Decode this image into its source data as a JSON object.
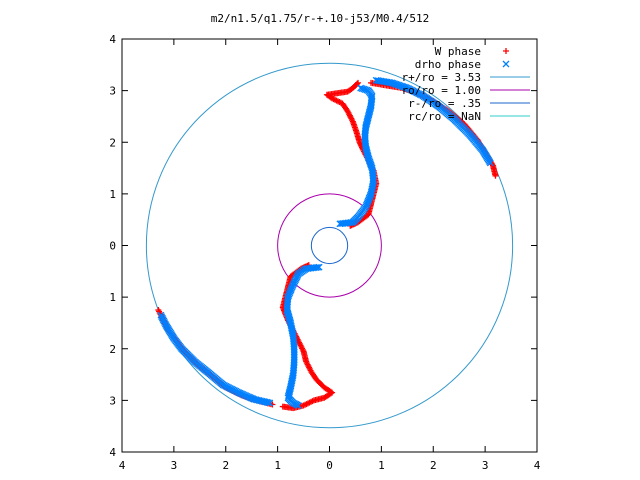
{
  "chart_data": {
    "type": "scatter",
    "title": "m2/n1.5/q1.75/r-+.10-j53/M0.4/512",
    "xlabel": "",
    "ylabel": "",
    "xlim": [
      -4,
      4
    ],
    "ylim": [
      -4,
      4
    ],
    "grid": false,
    "legend_position": "top-right",
    "x_tick_labels": [
      "4",
      "3",
      "2",
      "1",
      "0",
      "1",
      "2",
      "3",
      "4"
    ],
    "y_tick_labels": [
      "4",
      "3",
      "2",
      "1",
      "0",
      "1",
      "2",
      "3",
      "4"
    ],
    "series": [
      {
        "name": "W phase",
        "marker": "+",
        "color": "#ff0000",
        "points": [
          [
            0.55,
            3.15
          ],
          [
            0.45,
            3.05
          ],
          [
            0.35,
            2.98
          ],
          [
            0.15,
            2.95
          ],
          [
            -0.05,
            2.92
          ],
          [
            0.05,
            2.85
          ],
          [
            0.25,
            2.75
          ],
          [
            0.35,
            2.6
          ],
          [
            0.45,
            2.4
          ],
          [
            0.52,
            2.2
          ],
          [
            0.58,
            2.0
          ],
          [
            0.65,
            1.85
          ],
          [
            0.75,
            1.65
          ],
          [
            0.85,
            1.45
          ],
          [
            0.9,
            1.2
          ],
          [
            0.85,
            1.0
          ],
          [
            0.8,
            0.8
          ],
          [
            0.75,
            0.6
          ],
          [
            0.55,
            0.45
          ],
          [
            0.4,
            0.38
          ],
          [
            -0.4,
            -0.38
          ],
          [
            -0.55,
            -0.45
          ],
          [
            -0.75,
            -0.6
          ],
          [
            -0.8,
            -0.8
          ],
          [
            -0.85,
            -1.0
          ],
          [
            -0.9,
            -1.2
          ],
          [
            -0.8,
            -1.45
          ],
          [
            -0.7,
            -1.65
          ],
          [
            -0.6,
            -1.85
          ],
          [
            -0.5,
            -2.05
          ],
          [
            -0.45,
            -2.25
          ],
          [
            -0.35,
            -2.45
          ],
          [
            -0.25,
            -2.6
          ],
          [
            -0.1,
            -2.75
          ],
          [
            0.05,
            -2.85
          ],
          [
            -0.1,
            -2.95
          ],
          [
            -0.3,
            -3.0
          ],
          [
            -0.5,
            -3.1
          ],
          [
            -0.7,
            -3.15
          ],
          [
            -0.9,
            -3.12
          ],
          [
            0.8,
            3.15
          ],
          [
            1.1,
            3.1
          ],
          [
            1.4,
            3.05
          ],
          [
            1.7,
            2.95
          ],
          [
            2.0,
            2.8
          ],
          [
            2.3,
            2.6
          ],
          [
            2.6,
            2.35
          ],
          [
            2.85,
            2.05
          ],
          [
            3.0,
            1.8
          ],
          [
            3.15,
            1.55
          ],
          [
            3.2,
            1.35
          ],
          [
            -3.3,
            -1.25
          ],
          [
            -3.2,
            -1.45
          ],
          [
            -3.1,
            -1.65
          ],
          [
            -2.95,
            -1.85
          ],
          [
            -2.8,
            -2.05
          ],
          [
            -2.55,
            -2.3
          ],
          [
            -2.3,
            -2.5
          ],
          [
            -2.0,
            -2.75
          ],
          [
            -1.7,
            -2.9
          ],
          [
            -1.4,
            -3.0
          ],
          [
            -1.1,
            -3.08
          ]
        ]
      },
      {
        "name": "drho phase",
        "marker": "x",
        "color": "#0080ff",
        "points": [
          [
            0.6,
            3.05
          ],
          [
            0.75,
            3.0
          ],
          [
            0.82,
            2.9
          ],
          [
            0.8,
            2.7
          ],
          [
            0.75,
            2.5
          ],
          [
            0.7,
            2.3
          ],
          [
            0.68,
            2.1
          ],
          [
            0.7,
            1.9
          ],
          [
            0.75,
            1.7
          ],
          [
            0.82,
            1.5
          ],
          [
            0.85,
            1.25
          ],
          [
            0.8,
            1.0
          ],
          [
            0.7,
            0.75
          ],
          [
            0.55,
            0.55
          ],
          [
            0.45,
            0.45
          ],
          [
            0.2,
            0.42
          ],
          [
            -0.2,
            -0.42
          ],
          [
            -0.45,
            -0.45
          ],
          [
            -0.6,
            -0.55
          ],
          [
            -0.72,
            -0.8
          ],
          [
            -0.8,
            -1.0
          ],
          [
            -0.82,
            -1.25
          ],
          [
            -0.75,
            -1.5
          ],
          [
            -0.7,
            -1.75
          ],
          [
            -0.68,
            -2.0
          ],
          [
            -0.68,
            -2.25
          ],
          [
            -0.7,
            -2.5
          ],
          [
            -0.75,
            -2.75
          ],
          [
            -0.8,
            -2.95
          ],
          [
            -0.7,
            -3.05
          ],
          [
            -0.6,
            -3.1
          ],
          [
            0.9,
            3.2
          ],
          [
            1.2,
            3.15
          ],
          [
            1.5,
            3.05
          ],
          [
            1.8,
            2.9
          ],
          [
            2.1,
            2.7
          ],
          [
            2.4,
            2.45
          ],
          [
            2.7,
            2.15
          ],
          [
            2.95,
            1.85
          ],
          [
            3.1,
            1.6
          ],
          [
            -3.25,
            -1.35
          ],
          [
            -3.15,
            -1.55
          ],
          [
            -3.0,
            -1.8
          ],
          [
            -2.85,
            -2.0
          ],
          [
            -2.6,
            -2.25
          ],
          [
            -2.35,
            -2.45
          ],
          [
            -2.05,
            -2.7
          ],
          [
            -1.75,
            -2.85
          ],
          [
            -1.45,
            -2.98
          ],
          [
            -1.15,
            -3.05
          ]
        ]
      }
    ],
    "circles": [
      {
        "name": "r+/ro = 3.53",
        "radius": 3.53,
        "color": "#3399cc"
      },
      {
        "name": "ro/ro = 1.00",
        "radius": 1.0,
        "color": "#aa00aa"
      },
      {
        "name": "r-/ro = .35",
        "radius": 0.35,
        "color": "#1a66cc"
      },
      {
        "name": "rc/ro = NaN",
        "radius": null,
        "color": "#33cccc"
      }
    ]
  }
}
